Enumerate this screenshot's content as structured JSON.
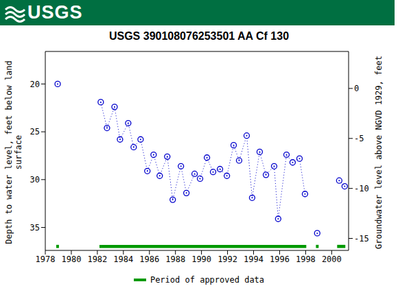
{
  "header": {
    "logo_text": "USGS",
    "color": "#006f41"
  },
  "chart_data": {
    "type": "line",
    "title": "USGS 390108076253501 AA Cf 130",
    "y_label": [
      "Depth to water level, feet below land",
      "surface"
    ],
    "y2_label": "Groundwater level above NGVD 1929, feet",
    "x": [
      1978.95,
      1980.6,
      1982.26,
      1982.74,
      1983.32,
      1983.74,
      1984.37,
      1984.79,
      1985.32,
      1985.84,
      1986.32,
      1986.79,
      1987.37,
      1987.79,
      1988.42,
      1988.84,
      1989.47,
      1989.89,
      1990.42,
      1990.89,
      1991.42,
      1991.95,
      1992.47,
      1992.89,
      1993.47,
      1993.89,
      1994.47,
      1994.95,
      1995.58,
      1995.89,
      1996.53,
      1997.0,
      1997.53,
      1997.95,
      1998.4,
      1998.89,
      1999.7,
      2000.58,
      2001.0
    ],
    "values": [
      20.0,
      null,
      21.9,
      24.6,
      22.4,
      25.8,
      24.1,
      26.6,
      25.8,
      29.1,
      27.4,
      29.6,
      27.6,
      32.1,
      28.6,
      31.4,
      29.4,
      29.9,
      27.7,
      29.2,
      28.9,
      29.6,
      26.4,
      28.0,
      25.4,
      31.9,
      27.1,
      29.5,
      28.6,
      34.1,
      27.4,
      28.2,
      27.8,
      31.5,
      null,
      35.6,
      null,
      30.1,
      30.7
    ],
    "color": "#0000cc",
    "marker": "circle",
    "line_style": "dotted",
    "xlim": [
      1978,
      2001.3
    ],
    "xticks": [
      1978,
      1980,
      1982,
      1984,
      1986,
      1988,
      1990,
      1992,
      1994,
      1996,
      1998,
      2000
    ],
    "ylim": [
      37.4,
      16.6
    ],
    "yticks": [
      20,
      25,
      30,
      35
    ],
    "y2lim": [
      -16.2,
      3.7
    ],
    "y2ticks": [
      0,
      -5,
      -10,
      -15
    ],
    "approved_data": {
      "label": "Period of approved data",
      "color": "#009900",
      "periods": [
        [
          1978.84,
          1979.05
        ],
        [
          1982.16,
          1998.05
        ],
        [
          1998.79,
          1999.0
        ],
        [
          2000.42,
          2001.05
        ]
      ]
    }
  }
}
